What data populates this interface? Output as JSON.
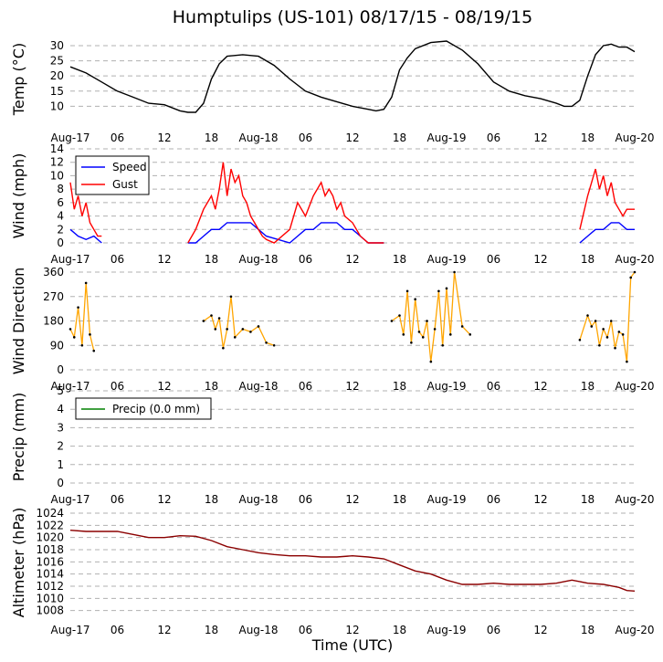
{
  "chart_data": [
    {
      "type": "line",
      "title": "Humptulips (US-101) 08/17/15 - 08/19/15",
      "ylabel": "Temp ($^\\circ$C)",
      "ylim": [
        5,
        33
      ],
      "yticks": [
        10,
        15,
        20,
        25,
        30
      ],
      "xticks": [
        "Aug-17",
        "06",
        "12",
        "18",
        "Aug-18",
        "06",
        "12",
        "18",
        "Aug-19",
        "06",
        "12",
        "18",
        "Aug-20"
      ],
      "xlim": [
        0,
        72
      ],
      "grid": true,
      "series": [
        {
          "color": "#000000",
          "x": [
            0,
            2,
            4,
            6,
            8,
            10,
            12,
            14,
            15,
            16,
            17,
            18,
            19,
            20,
            22,
            24,
            26,
            28,
            30,
            32,
            34,
            36,
            38,
            39,
            40,
            41,
            42,
            43,
            44,
            46,
            48,
            50,
            52,
            54,
            56,
            58,
            60,
            62,
            63,
            64,
            65,
            66,
            67,
            68,
            69,
            70,
            71,
            72
          ],
          "values": [
            23,
            21,
            18,
            15,
            13,
            11,
            10.5,
            8.5,
            8,
            8,
            11,
            19,
            24,
            26.5,
            27,
            26.5,
            23.5,
            19,
            15,
            13,
            11.5,
            10,
            9,
            8.5,
            9,
            13,
            22,
            26,
            29,
            31,
            31.5,
            28.5,
            24,
            18,
            15,
            13.5,
            12.5,
            11,
            10,
            10,
            12,
            20,
            27,
            30,
            30.5,
            29.5,
            29.5,
            28
          ]
        }
      ]
    },
    {
      "type": "line",
      "ylabel": "Wind (mph)",
      "ylim": [
        0,
        14
      ],
      "yticks": [
        0,
        2,
        4,
        6,
        8,
        10,
        12,
        14
      ],
      "xticks": [
        "Aug-17",
        "06",
        "12",
        "18",
        "Aug-18",
        "06",
        "12",
        "18",
        "Aug-19",
        "06",
        "12",
        "18",
        "Aug-20"
      ],
      "xlim": [
        0,
        72
      ],
      "grid": true,
      "legend": "top-left",
      "series": [
        {
          "name": "Speed",
          "color": "#0000ff",
          "x": [
            0,
            1,
            2,
            3,
            4,
            15,
            16,
            17,
            18,
            19,
            20,
            21,
            22,
            23,
            24,
            25,
            28,
            29,
            30,
            31,
            32,
            33,
            34,
            35,
            36,
            37,
            38,
            39,
            40,
            65,
            66,
            67,
            68,
            69,
            70,
            71,
            72
          ],
          "values": [
            2,
            1,
            0.5,
            1,
            0,
            0,
            0,
            1,
            2,
            2,
            3,
            3,
            3,
            3,
            2,
            1,
            0,
            1,
            2,
            2,
            3,
            3,
            3,
            2,
            2,
            1,
            0,
            0,
            0,
            0,
            1,
            2,
            2,
            3,
            3,
            2,
            2
          ]
        },
        {
          "name": "Gust",
          "color": "#ff0000",
          "x": [
            0,
            0.5,
            1,
            1.5,
            2,
            2.5,
            3,
            3.5,
            4,
            15,
            16,
            17,
            18,
            18.5,
            19,
            19.5,
            20,
            20.5,
            21,
            21.5,
            22,
            22.5,
            23,
            23.5,
            24,
            24.5,
            25,
            26,
            28,
            29,
            30,
            31,
            32,
            32.5,
            33,
            33.5,
            34,
            34.5,
            35,
            36,
            37,
            38,
            39,
            40,
            65,
            66,
            66.5,
            67,
            67.5,
            68,
            68.5,
            69,
            69.5,
            70,
            70.5,
            71,
            72
          ],
          "values": [
            9,
            5,
            7,
            4,
            6,
            3,
            2,
            1,
            1,
            0,
            2,
            5,
            7,
            5,
            8,
            12,
            7,
            11,
            9,
            10,
            7,
            6,
            4,
            3,
            2,
            1,
            0.5,
            0,
            2,
            6,
            4,
            7,
            9,
            7,
            8,
            7,
            5,
            6,
            4,
            3,
            1,
            0,
            0,
            0,
            2,
            7,
            9,
            11,
            8,
            10,
            7,
            9,
            6,
            5,
            4,
            5,
            5
          ]
        }
      ]
    },
    {
      "type": "scatter",
      "ylabel": "Wind Direction",
      "ylim": [
        0,
        360
      ],
      "yticks": [
        0,
        90,
        180,
        270,
        360
      ],
      "xticks": [
        "Aug-17",
        "06",
        "12",
        "18",
        "Aug-18",
        "06",
        "12",
        "18",
        "Aug-19",
        "06",
        "12",
        "18",
        "Aug-20"
      ],
      "xlim": [
        0,
        72
      ],
      "grid": true,
      "series": [
        {
          "color": "#ffa500",
          "x": [
            0,
            0.5,
            1,
            1.5,
            2,
            2.5,
            3,
            17,
            18,
            18.5,
            19,
            19.5,
            20,
            20.5,
            21,
            22,
            23,
            24,
            25,
            26,
            41,
            42,
            42.5,
            43,
            43.5,
            44,
            44.5,
            45,
            45.5,
            46,
            46.5,
            47,
            47.5,
            48,
            48.5,
            49,
            50,
            51,
            65,
            66,
            66.5,
            67,
            67.5,
            68,
            68.5,
            69,
            69.5,
            70,
            70.5,
            71,
            71.5,
            72
          ],
          "values": [
            150,
            120,
            230,
            90,
            320,
            130,
            70,
            180,
            200,
            150,
            190,
            80,
            150,
            270,
            120,
            150,
            140,
            160,
            100,
            90,
            180,
            200,
            130,
            290,
            100,
            260,
            140,
            120,
            180,
            30,
            150,
            290,
            90,
            300,
            130,
            360,
            160,
            130,
            110,
            200,
            160,
            180,
            90,
            150,
            120,
            180,
            80,
            140,
            130,
            30,
            340,
            360
          ]
        }
      ]
    },
    {
      "type": "line",
      "ylabel": "Precip (mm)",
      "ylim": [
        0,
        5
      ],
      "yticks": [
        0,
        1,
        2,
        3,
        4,
        5
      ],
      "xticks": [
        "Aug-17",
        "06",
        "12",
        "18",
        "Aug-18",
        "06",
        "12",
        "18",
        "Aug-19",
        "06",
        "12",
        "18",
        "Aug-20"
      ],
      "xlim": [
        0,
        72
      ],
      "grid": true,
      "legend": "top-left",
      "series": [
        {
          "name": "Precip (0.0 mm)",
          "color": "#008000",
          "x": [
            0,
            72
          ],
          "values": [
            0,
            0
          ]
        }
      ]
    },
    {
      "type": "line",
      "ylabel": "Altimeter (hPa)",
      "xlabel": "Time (UTC)",
      "ylim": [
        1007.5,
        1024.3
      ],
      "yticks": [
        1008,
        1010,
        1012,
        1014,
        1016,
        1018,
        1020,
        1022,
        1024
      ],
      "xticks": [
        "Aug-17",
        "06",
        "12",
        "18",
        "Aug-18",
        "06",
        "12",
        "18",
        "Aug-19",
        "06",
        "12",
        "18",
        "Aug-20"
      ],
      "xlim": [
        0,
        72
      ],
      "grid": true,
      "series": [
        {
          "color": "#8b0000",
          "x": [
            0,
            2,
            4,
            6,
            8,
            10,
            12,
            14,
            16,
            18,
            20,
            22,
            24,
            26,
            28,
            30,
            32,
            34,
            36,
            38,
            40,
            42,
            44,
            46,
            48,
            50,
            52,
            54,
            56,
            58,
            60,
            62,
            64,
            66,
            68,
            70,
            71,
            72
          ],
          "values": [
            1021.2,
            1021,
            1021,
            1021,
            1020.5,
            1020,
            1020,
            1020.3,
            1020.2,
            1019.5,
            1018.5,
            1018,
            1017.5,
            1017.2,
            1017,
            1017,
            1016.8,
            1016.8,
            1017,
            1016.8,
            1016.5,
            1015.5,
            1014.5,
            1014,
            1013,
            1012.3,
            1012.3,
            1012.5,
            1012.3,
            1012.3,
            1012.3,
            1012.5,
            1013,
            1012.5,
            1012.3,
            1011.8,
            1011.3,
            1011.2
          ]
        }
      ]
    }
  ]
}
